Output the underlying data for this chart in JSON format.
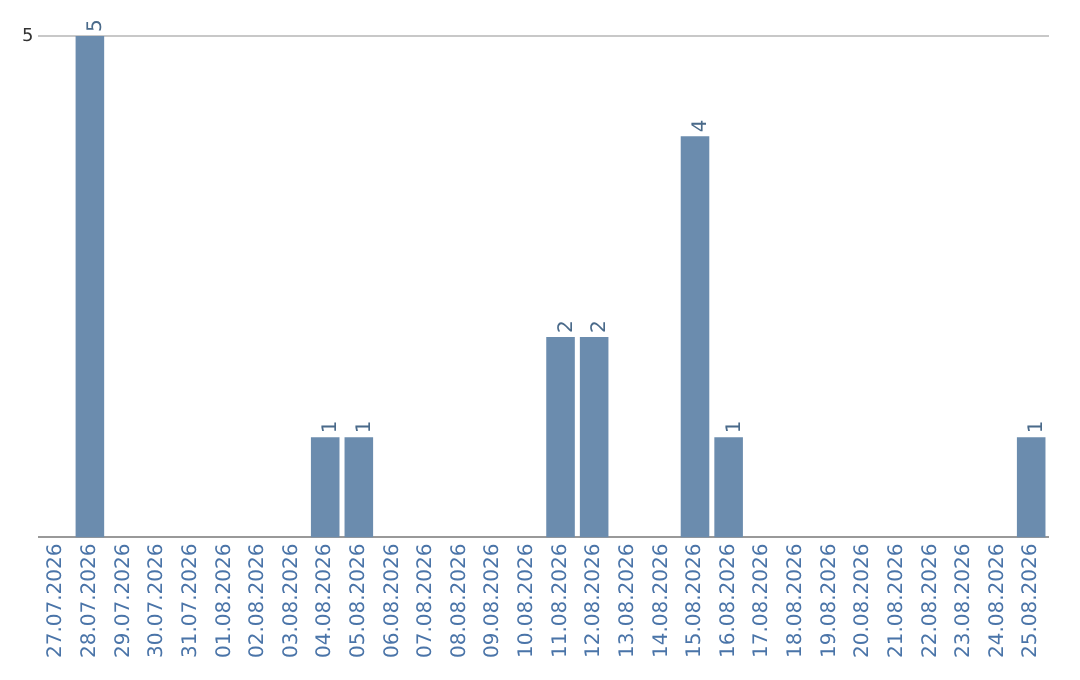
{
  "chart_data": {
    "type": "bar",
    "categories": [
      "27.07.2026",
      "28.07.2026",
      "29.07.2026",
      "30.07.2026",
      "31.07.2026",
      "01.08.2026",
      "02.08.2026",
      "03.08.2026",
      "04.08.2026",
      "05.08.2026",
      "06.08.2026",
      "07.08.2026",
      "08.08.2026",
      "09.08.2026",
      "10.08.2026",
      "11.08.2026",
      "12.08.2026",
      "13.08.2026",
      "14.08.2026",
      "15.08.2026",
      "16.08.2026",
      "17.08.2026",
      "18.08.2026",
      "19.08.2026",
      "20.08.2026",
      "21.08.2026",
      "22.08.2026",
      "23.08.2026",
      "24.08.2026",
      "25.08.2026"
    ],
    "values": [
      0,
      5,
      0,
      0,
      0,
      0,
      0,
      0,
      1,
      1,
      0,
      0,
      0,
      0,
      0,
      2,
      2,
      0,
      0,
      4,
      1,
      0,
      0,
      0,
      0,
      0,
      0,
      0,
      0,
      1
    ],
    "value_labels": [
      null,
      "5",
      null,
      null,
      null,
      null,
      null,
      null,
      "1",
      "1",
      null,
      null,
      null,
      null,
      null,
      "2",
      "2",
      null,
      null,
      "4",
      "1",
      null,
      null,
      null,
      null,
      null,
      null,
      null,
      null,
      "1"
    ],
    "color": "#6b8cae",
    "ylim": [
      0,
      5
    ],
    "yticks": [
      5
    ],
    "legend": false
  }
}
